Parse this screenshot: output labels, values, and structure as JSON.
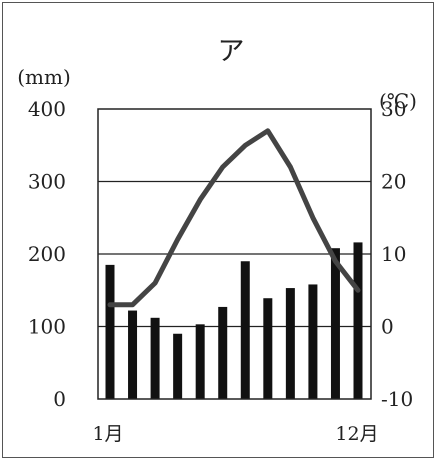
{
  "chart_data": {
    "type": "bar+line",
    "title": "ア",
    "y_left_unit": "(mm)",
    "y_right_unit": "(℃)",
    "y_left_ticks": [
      "400",
      "300",
      "200",
      "100",
      "0"
    ],
    "y_right_ticks": [
      "30",
      "20",
      "10",
      "0",
      "-10"
    ],
    "ylim_left": [
      0,
      400
    ],
    "ylim_right": [
      -10,
      30
    ],
    "x_tick_labels": [
      "1月",
      "12月"
    ],
    "months": [
      1,
      2,
      3,
      4,
      5,
      6,
      7,
      8,
      9,
      10,
      11,
      12
    ],
    "precipitation_mm": [
      185,
      122,
      112,
      90,
      103,
      127,
      190,
      139,
      153,
      158,
      208,
      216
    ],
    "temperature_c": [
      3,
      3,
      6,
      12,
      17.5,
      22,
      25,
      27,
      22,
      15,
      9,
      5
    ],
    "grid": "horizontal"
  }
}
